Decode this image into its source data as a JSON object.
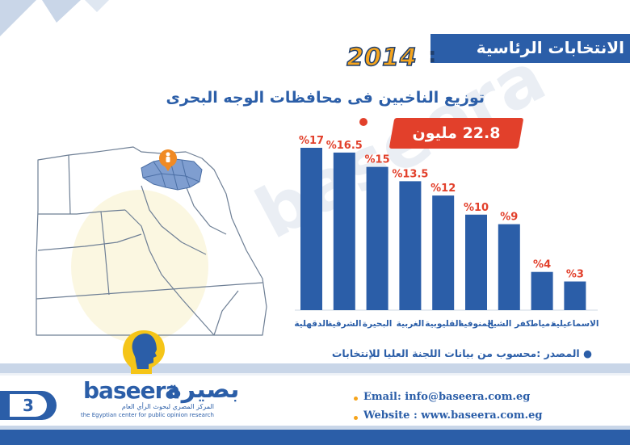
{
  "header": {
    "title": "الانتخابات الرئاسية",
    "year": "2014",
    "subtitle": "توزيع الناخبين فى محافظات الوجه البحرى"
  },
  "total": {
    "label": "22.8 مليون"
  },
  "watermark": {
    "text": "baseera"
  },
  "chart_data": {
    "type": "bar",
    "title": "توزيع الناخبين فى محافظات الوجه البحرى",
    "categories": [
      "الدقهلية",
      "الشرقية",
      "البحيرة",
      "الغربية",
      "القليوبية",
      "المنوفية",
      "كفر الشيخ",
      "دمياط",
      "الاسماعيلية"
    ],
    "values": [
      17,
      16.5,
      15,
      13.5,
      12,
      10,
      9,
      4,
      3
    ],
    "value_labels": [
      "%17",
      "%16.5",
      "%15",
      "%13.5",
      "%12",
      "%10",
      "%9",
      "%4",
      "%3"
    ],
    "unit": "%",
    "ylim": [
      0,
      17
    ],
    "grid": false,
    "legend": "none",
    "bar_color": "#2b5ea8",
    "label_color": "#e2402b"
  },
  "source": {
    "text": "المصدر :محسوب من بيانات اللجنة العليا للإنتخابات"
  },
  "logo": {
    "en": "baseera",
    "ar": "بصيرة",
    "ar_sub": "المركز المصري لبحوث الرأي العام",
    "en_sub": "the Egyptian center for public opinion research"
  },
  "page_number": "3",
  "contacts": {
    "email": "Email: info@baseera.com.eg",
    "website": "Website : www.baseera.com.eg"
  },
  "colors": {
    "primary": "#2b5ea8",
    "accent_orange": "#f5a41c",
    "accent_red": "#e2402b",
    "light_blue": "#c9d6e8"
  }
}
